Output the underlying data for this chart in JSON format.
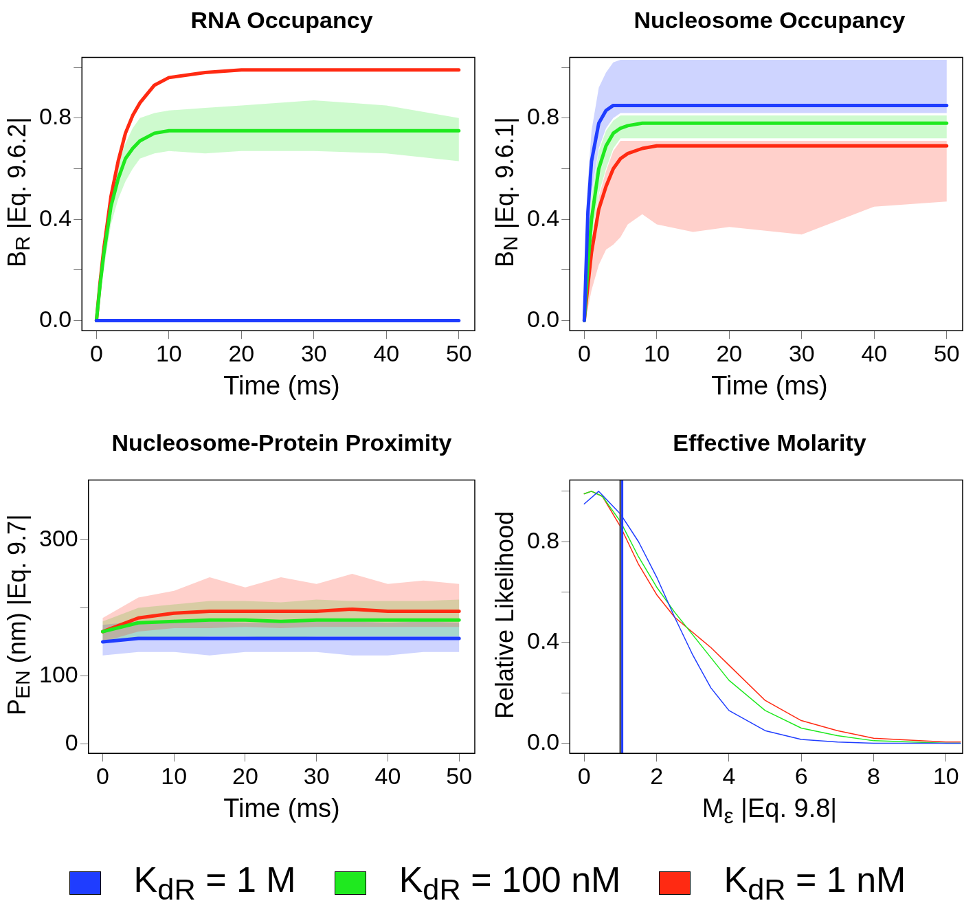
{
  "chart_data": [
    {
      "type": "line",
      "title": "RNA Occupancy",
      "xlabel": "Time (ms)",
      "ylabel": "B$_{R}$  |Eq. 9.6.2|",
      "marker": "none",
      "xlim": [
        -2,
        52.2
      ],
      "ylim": [
        -0.04,
        1.04
      ],
      "xticks": [
        0,
        10,
        20,
        30,
        40,
        50
      ],
      "yticks": [
        {
          "value": 0,
          "label": "0.0"
        },
        {
          "value": 0.2,
          "label": null
        },
        0.4,
        {
          "value": 0.6,
          "label": null
        },
        0.8,
        {
          "value": 1,
          "label": null
        }
      ],
      "x": [
        0,
        0.5,
        1,
        2,
        3,
        4,
        5,
        6,
        8,
        10,
        15,
        20,
        30,
        40,
        50
      ],
      "series": [
        {
          "color": "#1f3dff",
          "values": [
            0,
            0,
            0,
            0,
            0,
            0,
            0,
            0,
            0,
            0,
            0,
            0,
            0,
            0,
            0
          ]
        },
        {
          "color": "#1fe91f",
          "values": [
            0,
            0.14,
            0.26,
            0.45,
            0.56,
            0.64,
            0.68,
            0.71,
            0.74,
            0.75,
            0.75,
            0.75,
            0.75,
            0.75,
            0.75
          ],
          "lower": [
            0,
            0.1,
            0.2,
            0.38,
            0.48,
            0.55,
            0.6,
            0.64,
            0.66,
            0.67,
            0.66,
            0.67,
            0.67,
            0.66,
            0.63
          ],
          "upper": [
            0,
            0.16,
            0.3,
            0.5,
            0.62,
            0.7,
            0.76,
            0.8,
            0.82,
            0.83,
            0.84,
            0.85,
            0.87,
            0.85,
            0.8
          ]
        },
        {
          "color": "#ff2a12",
          "values": [
            0,
            0.15,
            0.28,
            0.49,
            0.63,
            0.74,
            0.81,
            0.86,
            0.93,
            0.96,
            0.98,
            0.99,
            0.99,
            0.99,
            0.99
          ]
        }
      ]
    },
    {
      "type": "line",
      "title": "Nucleosome Occupancy",
      "xlabel": "Time (ms)",
      "ylabel": "B$_{N}$  |Eq. 9.6.1|",
      "marker": "none",
      "xlim": [
        -2,
        52.2
      ],
      "ylim": [
        -0.04,
        1.04
      ],
      "xticks": [
        0,
        10,
        20,
        30,
        40,
        50
      ],
      "yticks": [
        {
          "value": 0,
          "label": "0.0"
        },
        {
          "value": 0.2,
          "label": null
        },
        0.4,
        {
          "value": 0.6,
          "label": null
        },
        0.8,
        {
          "value": 1,
          "label": null
        }
      ],
      "x": [
        0,
        0.5,
        1,
        2,
        3,
        4,
        5,
        6,
        8,
        10,
        15,
        20,
        30,
        40,
        50
      ],
      "series": [
        {
          "color": "#1f3dff",
          "values": [
            0,
            0.43,
            0.63,
            0.78,
            0.83,
            0.85,
            0.85,
            0.85,
            0.85,
            0.85,
            0.85,
            0.85,
            0.85,
            0.85,
            0.85
          ],
          "lower": [
            0,
            0.3,
            0.5,
            0.68,
            0.76,
            0.8,
            0.82,
            0.82,
            0.82,
            0.82,
            0.82,
            0.82,
            0.82,
            0.82,
            0.82
          ],
          "upper": [
            0,
            0.55,
            0.75,
            0.92,
            0.98,
            1.02,
            1.03,
            1.03,
            1.03,
            1.03,
            1.03,
            1.03,
            1.03,
            1.03,
            1.03
          ]
        },
        {
          "color": "#1fe91f",
          "values": [
            0,
            0.22,
            0.4,
            0.6,
            0.69,
            0.74,
            0.76,
            0.77,
            0.78,
            0.78,
            0.78,
            0.78,
            0.78,
            0.78,
            0.78
          ],
          "lower": [
            0,
            0.17,
            0.32,
            0.5,
            0.6,
            0.68,
            0.72,
            0.72,
            0.72,
            0.72,
            0.72,
            0.72,
            0.72,
            0.72,
            0.72
          ],
          "upper": [
            0,
            0.29,
            0.49,
            0.67,
            0.75,
            0.79,
            0.81,
            0.81,
            0.81,
            0.81,
            0.81,
            0.81,
            0.81,
            0.81,
            0.81
          ]
        },
        {
          "color": "#ff2a12",
          "values": [
            0,
            0.14,
            0.27,
            0.44,
            0.53,
            0.6,
            0.64,
            0.66,
            0.68,
            0.69,
            0.69,
            0.69,
            0.69,
            0.69,
            0.69
          ],
          "lower": [
            0,
            0.05,
            0.12,
            0.22,
            0.28,
            0.3,
            0.33,
            0.38,
            0.42,
            0.38,
            0.35,
            0.37,
            0.34,
            0.45,
            0.47
          ],
          "upper": [
            0,
            0.16,
            0.31,
            0.49,
            0.59,
            0.67,
            0.71,
            0.71,
            0.71,
            0.71,
            0.71,
            0.71,
            0.71,
            0.71,
            0.71
          ]
        }
      ]
    },
    {
      "type": "line",
      "title": "Nucleosome-Protein Proximity",
      "xlabel": "Time (ms)",
      "ylabel": "P$_{EN}$ (nm)  |Eq. 9.7|",
      "marker": "none",
      "xlim": [
        -2,
        52.2
      ],
      "ylim": [
        -14,
        388
      ],
      "xticks": [
        0,
        10,
        20,
        30,
        40,
        50
      ],
      "yticks": [
        0,
        100,
        {
          "value": 200,
          "label": null
        },
        300
      ],
      "x": [
        0,
        5,
        10,
        15,
        20,
        25,
        30,
        35,
        40,
        45,
        50
      ],
      "series": [
        {
          "color": "#1f3dff",
          "values": [
            150,
            155,
            155,
            155,
            155,
            155,
            155,
            155,
            155,
            155,
            155
          ],
          "lower": [
            130,
            135,
            135,
            130,
            135,
            135,
            135,
            130,
            130,
            135,
            135
          ],
          "upper": [
            175,
            180,
            180,
            180,
            178,
            178,
            180,
            180,
            178,
            180,
            178
          ]
        },
        {
          "color": "#1fe91f",
          "values": [
            165,
            178,
            180,
            182,
            182,
            180,
            182,
            182,
            182,
            182,
            182
          ],
          "lower": [
            150,
            155,
            155,
            158,
            158,
            155,
            158,
            158,
            158,
            158,
            158
          ],
          "upper": [
            180,
            200,
            205,
            210,
            210,
            208,
            212,
            210,
            210,
            210,
            212
          ]
        },
        {
          "color": "#ff2a12",
          "values": [
            165,
            185,
            192,
            195,
            195,
            195,
            195,
            198,
            195,
            195,
            195
          ],
          "lower": [
            150,
            165,
            170,
            170,
            172,
            170,
            172,
            172,
            172,
            172,
            172
          ],
          "upper": [
            185,
            215,
            225,
            245,
            230,
            245,
            235,
            250,
            235,
            240,
            235
          ]
        }
      ]
    },
    {
      "type": "line",
      "title": "Effective Molarity",
      "xlabel": "M$_{ε}$  |Eq. 9.8|",
      "ylabel": "Relative Likelihood",
      "marker": "none",
      "legend": "bottom",
      "xlim": [
        -0.4,
        10.46
      ],
      "ylim": [
        -0.04,
        1.045
      ],
      "xticks": [
        0,
        2,
        4,
        6,
        8,
        10
      ],
      "yticks": [
        {
          "value": 0,
          "label": "0.0"
        },
        {
          "value": 0.2,
          "label": null
        },
        0.4,
        {
          "value": 0.6,
          "label": null
        },
        0.8,
        {
          "value": 1,
          "label": null
        }
      ],
      "ref_lines": [
        {
          "axis": "x",
          "value": 1,
          "color": "#555555"
        },
        {
          "axis": "x",
          "value": 1.05,
          "color": "#1f3dff"
        }
      ],
      "series": [
        {
          "name": "K$_{dR}$ = 1 M",
          "color": "#1f3dff",
          "x": [
            0,
            0.4,
            1,
            1.5,
            2,
            2.5,
            3,
            3.5,
            4,
            5,
            6,
            7,
            8,
            10,
            10.4
          ],
          "values": [
            0.95,
            1,
            0.91,
            0.8,
            0.66,
            0.5,
            0.35,
            0.22,
            0.13,
            0.05,
            0.015,
            0.005,
            0,
            0,
            0
          ]
        },
        {
          "name": "K$_{dR}$ = 100 nM",
          "color": "#1fe91f",
          "x": [
            0,
            0.2,
            0.5,
            1,
            1.5,
            2,
            2.5,
            3,
            3.5,
            4,
            5,
            6,
            7,
            8,
            10,
            10.4
          ],
          "values": [
            0.99,
            1,
            0.98,
            0.88,
            0.74,
            0.62,
            0.52,
            0.43,
            0.34,
            0.25,
            0.13,
            0.06,
            0.03,
            0.01,
            0,
            0
          ]
        },
        {
          "name": "K$_{dR}$ = 1 nM",
          "color": "#ff2a12",
          "x": [
            0,
            0.2,
            0.5,
            1,
            1.5,
            2,
            2.5,
            3,
            3.5,
            4,
            5,
            6,
            7,
            8,
            10,
            10.4
          ],
          "values": [
            0.99,
            1,
            0.98,
            0.86,
            0.71,
            0.59,
            0.5,
            0.44,
            0.38,
            0.31,
            0.17,
            0.09,
            0.05,
            0.02,
            0.005,
            0.005
          ]
        }
      ]
    }
  ]
}
